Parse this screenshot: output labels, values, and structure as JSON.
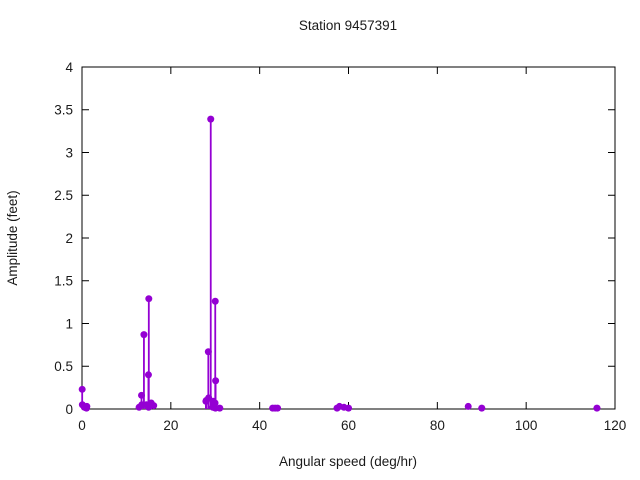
{
  "chart_data": {
    "type": "scatter",
    "subtype": "stem",
    "title": "Station 9457391",
    "xlabel": "Angular speed (deg/hr)",
    "ylabel": "Amplitude (feet)",
    "xlim": [
      0,
      120
    ],
    "ylim": [
      0,
      4
    ],
    "xticks": [
      0,
      20,
      40,
      60,
      80,
      100,
      120
    ],
    "yticks": [
      0,
      0.5,
      1,
      1.5,
      2,
      2.5,
      3,
      3.5,
      4
    ],
    "grid": false,
    "legend_position": "none",
    "marker_color": "#9400d3",
    "axis_color": "#000000",
    "x": [
      0.041,
      0.082,
      0.544,
      1.016,
      1.098,
      12.854,
      13.399,
      13.471,
      13.943,
      14.497,
      14.959,
      15.0,
      15.041,
      15.585,
      16.139,
      27.895,
      27.968,
      28.44,
      28.512,
      28.984,
      29.456,
      29.528,
      29.959,
      30.0,
      30.041,
      30.082,
      31.016,
      42.927,
      43.476,
      44.025,
      57.424,
      57.968,
      58.984,
      60.0,
      86.952,
      90.0,
      115.936
    ],
    "y": [
      0.23,
      0.05,
      0.02,
      0.01,
      0.03,
      0.02,
      0.16,
      0.05,
      0.87,
      0.05,
      0.4,
      0.02,
      1.29,
      0.07,
      0.04,
      0.09,
      0.1,
      0.67,
      0.13,
      3.39,
      0.02,
      0.09,
      0.07,
      1.26,
      0.01,
      0.33,
      0.01,
      0.01,
      0.01,
      0.01,
      0.01,
      0.03,
      0.02,
      0.01,
      0.03,
      0.01,
      0.01
    ]
  }
}
